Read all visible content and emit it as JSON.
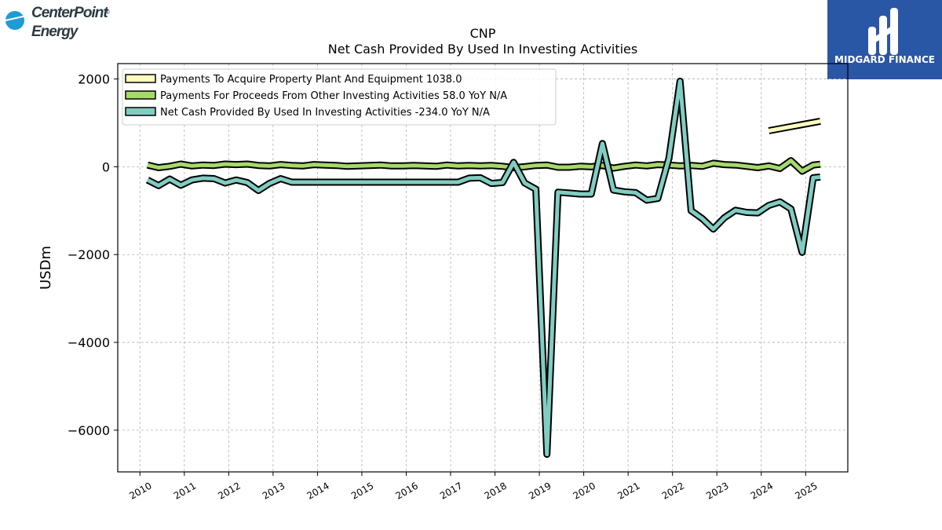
{
  "brand_left": {
    "line1": "CenterPoint",
    "line2": "Energy",
    "reg_mark": "®",
    "icon": "centerpoint-globe-icon",
    "color": "#1e9bd7"
  },
  "brand_right": {
    "name": "MIDGARD FINANCE",
    "icon": "midgard-mark-icon",
    "bg_color": "#2a56a6"
  },
  "chart_data": {
    "type": "line",
    "title": "CNP",
    "subtitle": "Net Cash Provided By Used In Investing Activities",
    "xlabel": "",
    "ylabel": "USDm",
    "xlim": [
      2009.5,
      2025.95
    ],
    "ylim": [
      -6950,
      2350
    ],
    "x_ticks": [
      2010,
      2011,
      2012,
      2013,
      2014,
      2015,
      2016,
      2017,
      2018,
      2019,
      2020,
      2021,
      2022,
      2023,
      2024,
      2025
    ],
    "x_tick_labels": [
      "2010",
      "2011",
      "2012",
      "2013",
      "2014",
      "2015",
      "2016",
      "2017",
      "2018",
      "2019",
      "2020",
      "2021",
      "2022",
      "2023",
      "2024",
      "2025"
    ],
    "y_ticks": [
      -6000,
      -4000,
      -2000,
      0,
      2000
    ],
    "y_tick_labels": [
      "−6000",
      "−4000",
      "−2000",
      "0",
      "2000"
    ],
    "grid": true,
    "legend_position": "top-left",
    "series": [
      {
        "name": "Payments To Acquire Property Plant And Equipment",
        "legend_label": "Payments To Acquire Property Plant And Equipment  1038.0",
        "color": "#ffffbf",
        "x": [
          2024.17,
          2025.33
        ],
        "y": [
          820,
          1038
        ]
      },
      {
        "name": "Payments For Proceeds From Other Investing Activities",
        "legend_label": "Payments For Proceeds From Other Investing Activities  58.0 YoY N/A",
        "color": "#a6d96a",
        "x": [
          2010.17,
          2010.42,
          2010.67,
          2010.92,
          2011.17,
          2011.42,
          2011.67,
          2011.92,
          2012.17,
          2012.42,
          2012.67,
          2012.92,
          2013.17,
          2013.42,
          2013.67,
          2013.92,
          2014.17,
          2014.42,
          2014.67,
          2014.92,
          2015.17,
          2015.42,
          2015.67,
          2015.92,
          2016.17,
          2016.42,
          2016.67,
          2016.92,
          2017.17,
          2017.42,
          2017.67,
          2017.92,
          2018.17,
          2018.42,
          2018.67,
          2018.92,
          2019.17,
          2019.42,
          2019.67,
          2019.92,
          2020.17,
          2020.42,
          2020.67,
          2020.92,
          2021.17,
          2021.42,
          2021.67,
          2021.92,
          2022.17,
          2022.42,
          2022.67,
          2022.92,
          2023.17,
          2023.42,
          2023.67,
          2023.92,
          2024.17,
          2024.42,
          2024.67,
          2024.92,
          2025.17,
          2025.33
        ],
        "y": [
          40,
          -20,
          10,
          60,
          20,
          40,
          30,
          60,
          50,
          60,
          30,
          20,
          50,
          30,
          20,
          50,
          40,
          30,
          10,
          20,
          30,
          40,
          20,
          20,
          30,
          20,
          10,
          40,
          20,
          30,
          20,
          30,
          10,
          -20,
          0,
          30,
          40,
          -10,
          -10,
          10,
          0,
          30,
          -30,
          10,
          40,
          20,
          50,
          40,
          20,
          30,
          10,
          80,
          50,
          40,
          10,
          -20,
          20,
          -40,
          140,
          -100,
          40,
          58
        ]
      },
      {
        "name": "Net Cash Provided By Used In Investing Activities",
        "legend_label": "Net Cash Provided By Used In Investing Activities  -234.0 YoY N/A",
        "color": "#80cdc1",
        "x": [
          2010.17,
          2010.42,
          2010.67,
          2010.92,
          2011.17,
          2011.42,
          2011.67,
          2011.92,
          2012.17,
          2012.42,
          2012.67,
          2012.92,
          2013.17,
          2013.42,
          2013.67,
          2013.92,
          2014.17,
          2014.42,
          2014.67,
          2014.92,
          2015.17,
          2015.42,
          2015.67,
          2015.92,
          2016.17,
          2016.42,
          2016.67,
          2016.92,
          2017.17,
          2017.42,
          2017.67,
          2017.92,
          2018.17,
          2018.42,
          2018.67,
          2018.92,
          2019.17,
          2019.42,
          2019.67,
          2019.92,
          2020.17,
          2020.42,
          2020.67,
          2020.92,
          2021.17,
          2021.42,
          2021.67,
          2021.92,
          2022.17,
          2022.42,
          2022.67,
          2022.92,
          2023.17,
          2023.42,
          2023.67,
          2023.92,
          2024.17,
          2024.42,
          2024.67,
          2024.92,
          2025.17,
          2025.33
        ],
        "y": [
          -300,
          -430,
          -280,
          -420,
          -300,
          -260,
          -270,
          -370,
          -300,
          -360,
          -540,
          -380,
          -270,
          -350,
          -350,
          -350,
          -350,
          -350,
          -350,
          -350,
          -350,
          -350,
          -350,
          -350,
          -350,
          -350,
          -350,
          -350,
          -350,
          -260,
          -250,
          -380,
          -360,
          100,
          -370,
          -510,
          -6550,
          -580,
          -600,
          -620,
          -620,
          530,
          -530,
          -570,
          -590,
          -760,
          -720,
          200,
          1950,
          -1000,
          -1180,
          -1420,
          -1160,
          -990,
          -1040,
          -1050,
          -880,
          -800,
          -960,
          -1950,
          -250,
          -234
        ]
      }
    ]
  }
}
